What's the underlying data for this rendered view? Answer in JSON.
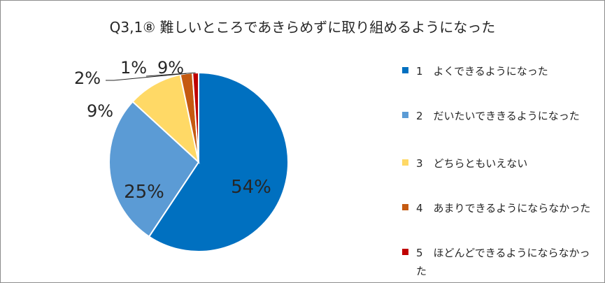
{
  "chart_data": {
    "type": "pie",
    "title": "Q3,1⑧ 難しいところであきらめずに取り組めるようになった",
    "slices": [
      {
        "label": "1　よくできるようになった",
        "value": 54,
        "value_label": "54%",
        "color": "#0070C0"
      },
      {
        "label": "2　だいたいでききるようになった",
        "value": 25,
        "value_label": "25%",
        "color": "#5B9BD5"
      },
      {
        "label": "3　どちらともいえない",
        "value": 9,
        "value_label": "9%",
        "color": "#FFD966"
      },
      {
        "label": "4　あまりできるようにならなかった",
        "value": 2,
        "value_label": "2%",
        "color": "#C55A11"
      },
      {
        "label": "5　ほどんどできるようにならなかった",
        "value": 1,
        "value_label": "1%",
        "color": "#C00000"
      }
    ],
    "extra_label": "9%",
    "legend_position": "right"
  }
}
